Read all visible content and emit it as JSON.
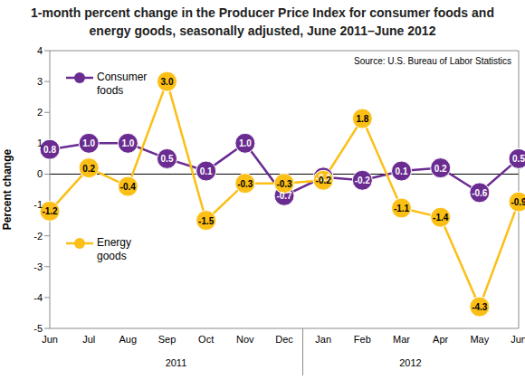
{
  "chart_data": {
    "type": "line",
    "title": "1-month percent change in the Producer Price Index for consumer foods and energy goods, seasonally adjusted, June 2011–June 2012",
    "annotations": [
      "Source: U.S. Bureau of Labor Statistics"
    ],
    "y_label": "Percent change",
    "categories": [
      "Jun",
      "Jul",
      "Aug",
      "Sep",
      "Oct",
      "Nov",
      "Dec",
      "Jan",
      "Feb",
      "Mar",
      "Apr",
      "May",
      "Jun"
    ],
    "x_groups": [
      {
        "label": "2011",
        "from": 0,
        "to": 6
      },
      {
        "label": "2012",
        "from": 7,
        "to": 12
      }
    ],
    "series": [
      {
        "name": "Consumer foods",
        "color": "#6a2c91",
        "marker": "circle",
        "values": [
          0.8,
          1.0,
          1.0,
          0.5,
          0.1,
          1.0,
          -0.7,
          -0.1,
          -0.2,
          0.1,
          0.2,
          -0.6,
          0.5
        ],
        "value_labels": [
          "0.8",
          "1.0",
          "1.0",
          "0.5",
          "0.1",
          "1.0",
          "-0.7",
          "-0.1",
          "-0.2",
          "0.1",
          "0.2",
          "-0.6",
          "0.5"
        ]
      },
      {
        "name": "Energy goods",
        "color": "#fbbf16",
        "marker": "circle",
        "values": [
          -1.2,
          0.2,
          -0.4,
          3.0,
          -1.5,
          -0.3,
          -0.3,
          -0.2,
          1.8,
          -1.1,
          -1.4,
          -4.3,
          -0.9
        ],
        "value_labels": [
          "-1.2",
          "0.2",
          "-0.4",
          "3.0",
          "-1.5",
          "-0.3",
          "-0.3",
          "-0.2",
          "1.8",
          "-1.1",
          "-1.4",
          "-4.3",
          "-0.9"
        ]
      }
    ],
    "ylim": [
      -5,
      4
    ],
    "yticks": [
      -5,
      -4,
      -3,
      -2,
      -1,
      0,
      1,
      2,
      3,
      4
    ],
    "grid": false,
    "legend": "left",
    "data_labels": true
  }
}
